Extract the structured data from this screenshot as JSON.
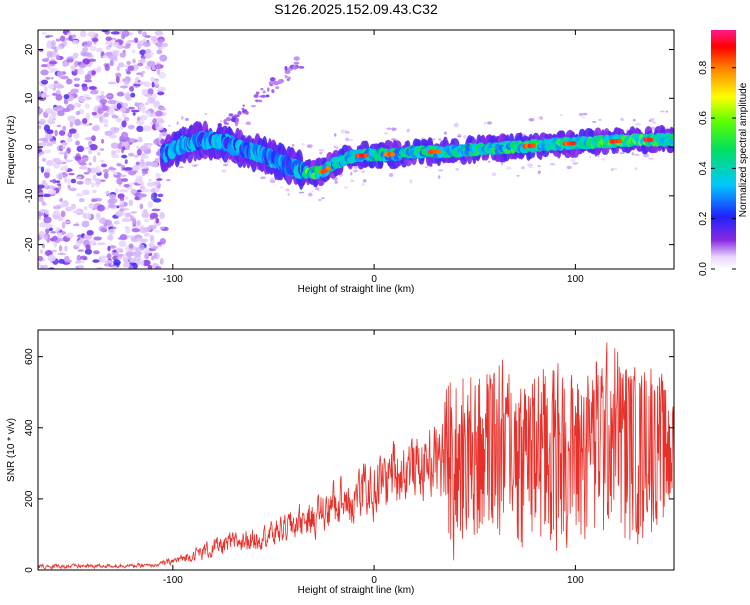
{
  "title": "S126.2025.152.09.43.C32",
  "colors": {
    "snr_line": "#e8302a",
    "axis": "#000000",
    "spectrogram_background": "#ffffff"
  },
  "chart_data": [
    {
      "type": "heatmap",
      "xlabel": "Height of straight line (km)",
      "ylabel": "Frequency (Hz)",
      "xlim": [
        -167,
        149
      ],
      "ylim": [
        -25,
        24
      ],
      "xticks": [
        -100,
        0,
        100
      ],
      "yticks": [
        -20,
        -10,
        0,
        10,
        20
      ],
      "colorbar": {
        "label": "Normalized spectral amplitude",
        "range": [
          0.0,
          0.95
        ],
        "ticks": [
          "0.0",
          "0.2",
          "0.4",
          "0.6",
          "0.8"
        ],
        "colormap": "rainbow (white-violet low, red-pink high)"
      },
      "features": {
        "noise_region_x": [
          -167,
          -104
        ],
        "signal_track": {
          "x": [
            -105,
            -95,
            -85,
            -75,
            -65,
            -55,
            -45,
            -38,
            -32,
            -25,
            -18,
            -12,
            0,
            10,
            20,
            30,
            40,
            50,
            60,
            70,
            80,
            90,
            100,
            110,
            120,
            130,
            140,
            149
          ],
          "freq": [
            -1.5,
            0.5,
            1.5,
            1.0,
            -0.5,
            -1.5,
            -3.5,
            -4.5,
            -5.5,
            -5.0,
            -3.0,
            -2.0,
            -1.5,
            -1.5,
            -1.0,
            -1.0,
            -0.8,
            -0.5,
            -0.3,
            0.0,
            0.3,
            0.6,
            0.8,
            1.0,
            1.2,
            1.4,
            1.5,
            1.5
          ]
        },
        "peak_amplitude_x": [
          -25,
          120
        ]
      }
    },
    {
      "type": "line",
      "xlabel": "Height of straight line (km)",
      "ylabel": "SNR (10 * v/v)",
      "xlim": [
        -167,
        149
      ],
      "ylim": [
        0,
        675
      ],
      "xticks": [
        -100,
        0,
        100
      ],
      "yticks": [
        0,
        200,
        400,
        600
      ],
      "series": [
        {
          "name": "SNR",
          "envelope_x": [
            -167,
            -110,
            -100,
            -90,
            -80,
            -70,
            -60,
            -50,
            -40,
            -30,
            -20,
            -10,
            0,
            10,
            20,
            30,
            40,
            50,
            60,
            70,
            80,
            90,
            100,
            110,
            120,
            130,
            140,
            149
          ],
          "envelope_max": [
            20,
            20,
            40,
            70,
            105,
            120,
            140,
            160,
            200,
            230,
            290,
            330,
            350,
            420,
            430,
            450,
            610,
            570,
            620,
            580,
            580,
            610,
            560,
            630,
            665,
            590,
            610,
            470
          ],
          "envelope_min": [
            0,
            5,
            10,
            15,
            20,
            30,
            40,
            50,
            60,
            70,
            80,
            90,
            100,
            130,
            150,
            170,
            10,
            60,
            30,
            20,
            40,
            30,
            60,
            40,
            50,
            40,
            60,
            170
          ]
        }
      ]
    }
  ]
}
